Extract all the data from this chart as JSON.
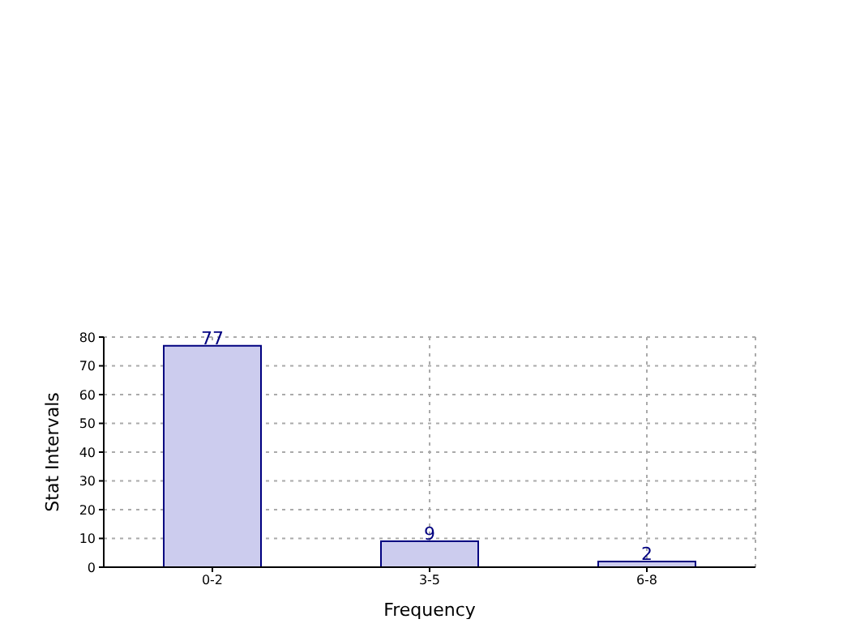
{
  "chart_data": {
    "type": "bar",
    "xlabel": "Frequency",
    "ylabel": "Stat Intervals",
    "categories": [
      "0-2",
      "3-5",
      "6-8"
    ],
    "values": [
      77,
      9,
      2
    ],
    "color": "#ccccee",
    "data_labels": true,
    "ylim": [
      0,
      80
    ],
    "yticks": [
      0,
      10,
      20,
      30,
      40,
      50,
      60,
      70,
      80
    ],
    "grid": true
  }
}
